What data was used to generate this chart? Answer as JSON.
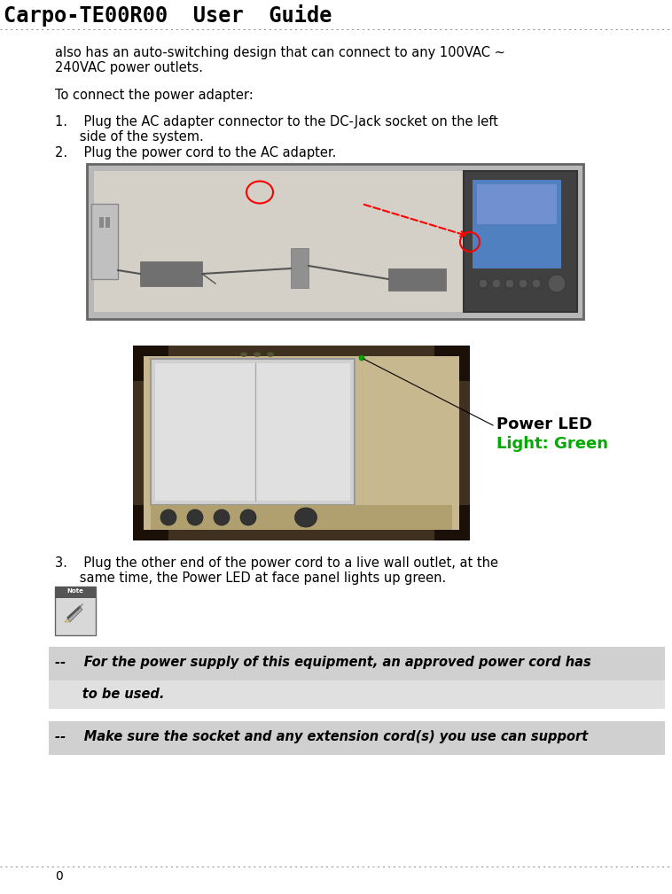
{
  "title": "Carpo-TE00R00  User  Guide",
  "page_number": "0",
  "bg_color": "#ffffff",
  "title_font_size": 17,
  "body_font_size": 10.5,
  "header_line_color": "#888888",
  "footer_line_color": "#888888",
  "body_text_1a": "also has an auto-switching design that can connect to any 100VAC ~",
  "body_text_1b": "240VAC power outlets.",
  "body_text_2": "To connect the power adapter:",
  "item1a": "1.    Plug the AC adapter connector to the DC-Jack socket on the left",
  "item1b": "      side of the system.",
  "item2": "2.    Plug the power cord to the AC adapter.",
  "item3a": "3.    Plug the other end of the power cord to a live wall outlet, at the",
  "item3b": "      same time, the Power LED at face panel lights up green.",
  "note_line1": "--    For the power supply of this equipment, an approved power cord has",
  "note_line1b": "      to be used.",
  "note_line2": "--    Make sure the socket and any extension cord(s) you use can support",
  "note_bg1": "#d0d0d0",
  "note_bg2": "#e0e0e0",
  "img1_bg": "#c8c8c8",
  "img2_bg": "#d0c8b8"
}
